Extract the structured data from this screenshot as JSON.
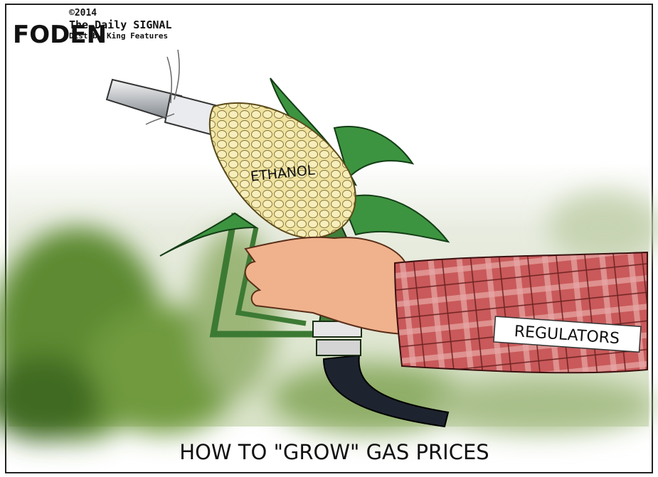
{
  "header": {
    "signature": "FODEN",
    "copyright": "©2014",
    "publisher": "The Daily SIGNAL",
    "distributor": "Dist.by King Features"
  },
  "labels": {
    "corn": "ETHANOL",
    "sleeve": "REGULATORS"
  },
  "caption": "HOW TO \"GROW\" GAS PRICES"
}
